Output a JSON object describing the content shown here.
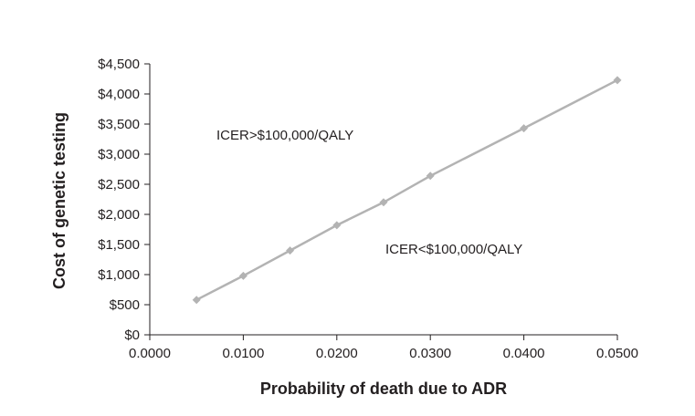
{
  "chart_data": {
    "type": "line",
    "title": "",
    "xlabel": "Probability of death due to ADR",
    "ylabel": "Cost of genetic  testing",
    "xlim": [
      0,
      0.05
    ],
    "ylim": [
      0,
      4500
    ],
    "x_ticks": [
      0,
      0.01,
      0.02,
      0.03,
      0.04,
      0.05
    ],
    "x_tick_labels": [
      "0.0000",
      "0.0100",
      "0.0200",
      "0.0300",
      "0.0400",
      "0.0500"
    ],
    "y_ticks": [
      0,
      500,
      1000,
      1500,
      2000,
      2500,
      3000,
      3500,
      4000,
      4500
    ],
    "y_tick_labels": [
      "$0",
      "$500",
      "$1,000",
      "$1,500",
      "$2,000",
      "$2,500",
      "$3,000",
      "$3,500",
      "$4,000",
      "$4,500"
    ],
    "grid": false,
    "series": [
      {
        "x": [
          0.005,
          0.01,
          0.015,
          0.02,
          0.025,
          0.03,
          0.04,
          0.05
        ],
        "values": [
          580,
          980,
          1400,
          1820,
          2200,
          2640,
          3430,
          4230
        ],
        "color": "#b3b3b3",
        "marker": "diamond"
      }
    ],
    "annotations": [
      {
        "text": "ICER>$100,000/QALY",
        "region": "above-line"
      },
      {
        "text": "ICER<$100,000/QALY",
        "region": "below-line"
      }
    ]
  }
}
